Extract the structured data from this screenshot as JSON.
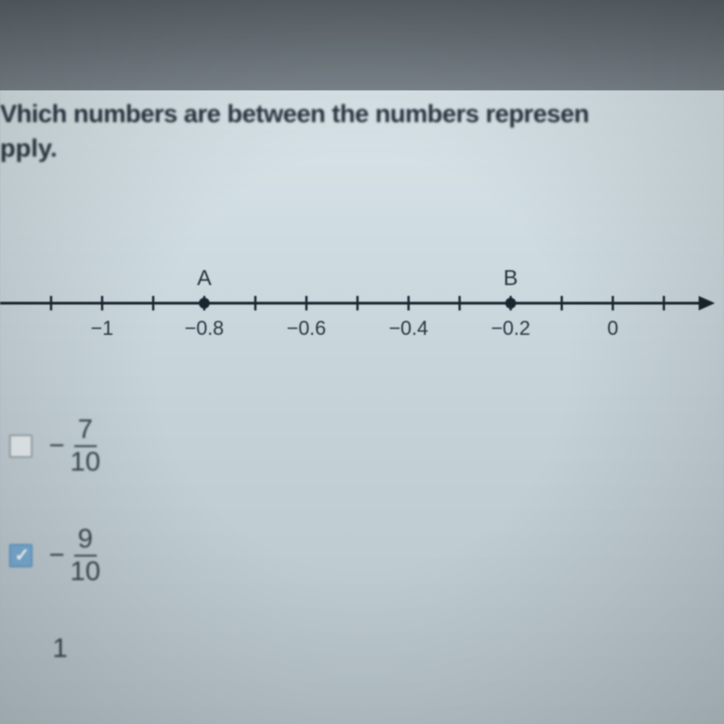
{
  "question": {
    "line1": "Vhich numbers are between the numbers represen",
    "line2": "pply."
  },
  "numberLine": {
    "labels": [
      "−1",
      "−0.8",
      "−0.6",
      "−0.4",
      "−0.2",
      "0"
    ],
    "pointALabel": "A",
    "pointBLabel": "B",
    "pointAPosition": -0.8,
    "pointBPosition": -0.2,
    "tickPositions": [
      -1.1,
      -1.0,
      -0.9,
      -0.8,
      -0.7,
      -0.6,
      -0.5,
      -0.4,
      -0.3,
      -0.2,
      -0.1,
      0,
      0.1
    ],
    "labelPositions": [
      -1.0,
      -0.8,
      -0.6,
      -0.4,
      -0.2,
      0
    ],
    "axisColor": "#1a2530",
    "labelColor": "#2a3540",
    "labelFontSize": 22
  },
  "options": [
    {
      "numerator": "7",
      "denominator": "10",
      "negative": true,
      "checked": false
    },
    {
      "numerator": "9",
      "denominator": "10",
      "negative": true,
      "checked": true
    },
    {
      "numerator": "1",
      "denominator": "",
      "negative": false,
      "checked": false
    }
  ],
  "colors": {
    "background": "#b5c2c8",
    "screen": "#d8e4e8",
    "text": "#2a3540",
    "checkbox": "#e8eef0",
    "checkboxChecked": "#7aaed6"
  }
}
